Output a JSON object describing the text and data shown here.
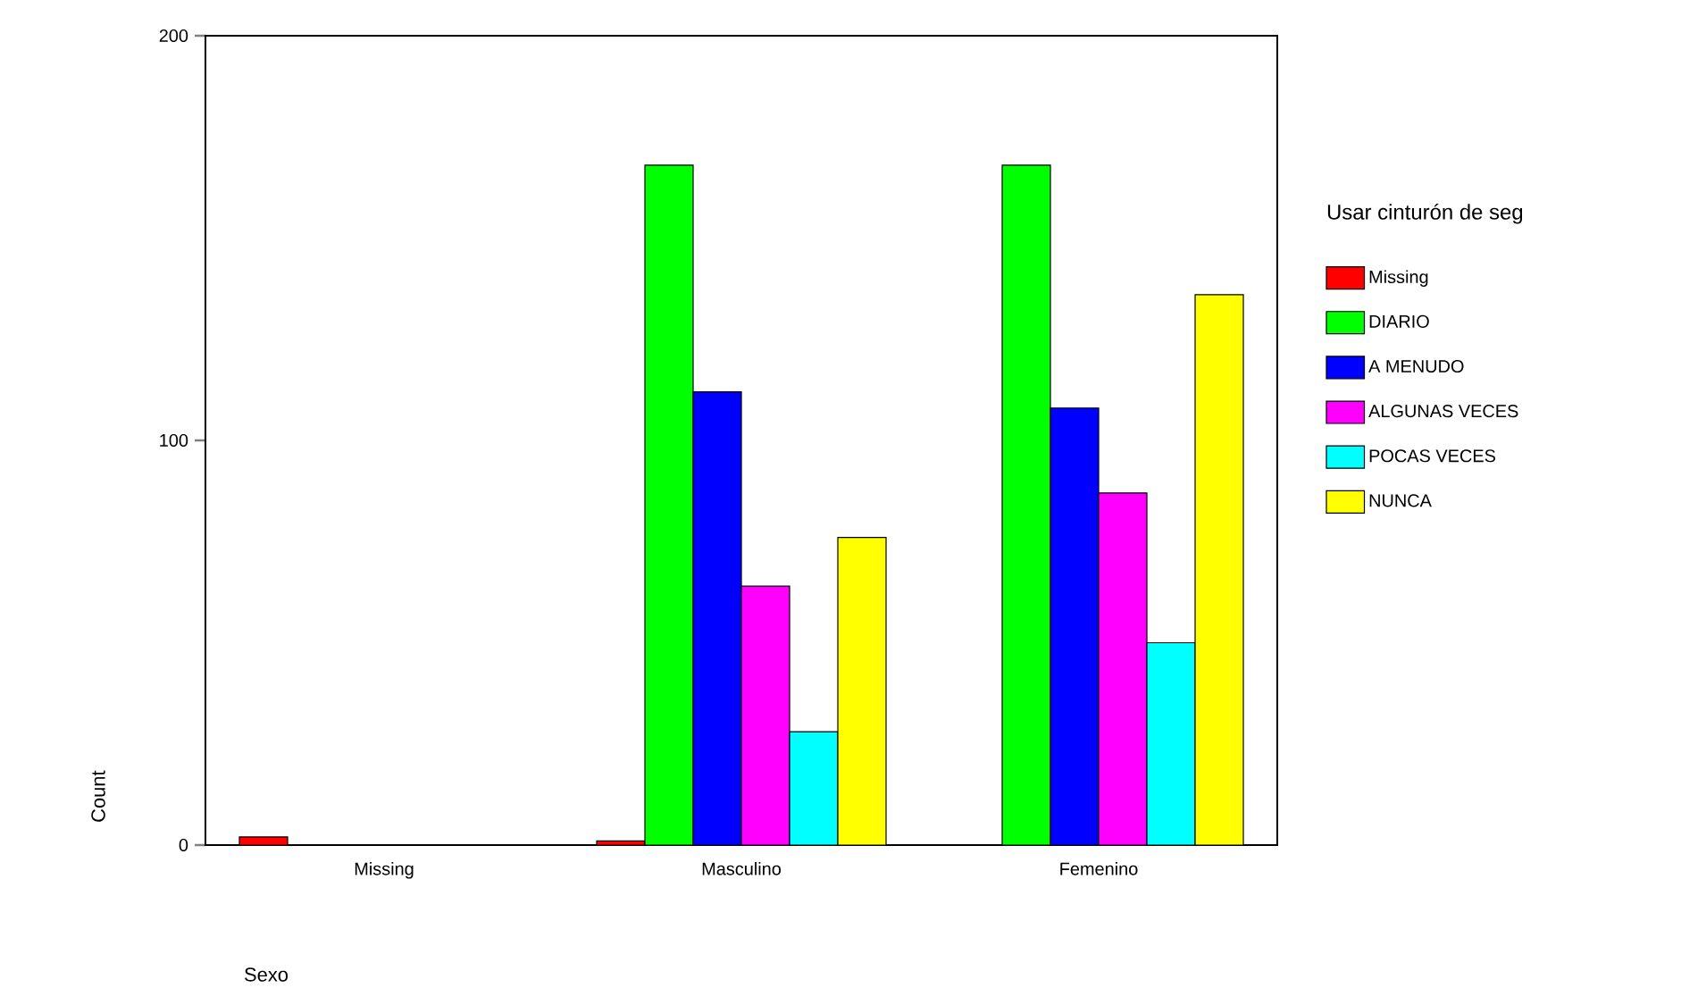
{
  "chart_data": {
    "type": "bar",
    "xlabel": "Sexo",
    "ylabel": "Count",
    "legend_title": "Usar cinturón de seg",
    "legend": "right",
    "categories": [
      "Missing",
      "Masculino",
      "Femenino"
    ],
    "ylim": [
      0,
      200
    ],
    "yticks": [
      0,
      100,
      200
    ],
    "series": [
      {
        "name": "Missing",
        "color": "#ff0000",
        "values": [
          2,
          1,
          null
        ]
      },
      {
        "name": "DIARIO",
        "color": "#00ff00",
        "values": [
          null,
          168,
          168
        ]
      },
      {
        "name": "A MENUDO",
        "color": "#0000ff",
        "values": [
          null,
          112,
          108
        ]
      },
      {
        "name": "ALGUNAS VECES",
        "color": "#ff00ff",
        "values": [
          null,
          64,
          87
        ]
      },
      {
        "name": "POCAS VECES",
        "color": "#00ffff",
        "values": [
          null,
          28,
          50
        ]
      },
      {
        "name": "NUNCA",
        "color": "#ffff00",
        "values": [
          null,
          76,
          136
        ]
      }
    ]
  }
}
